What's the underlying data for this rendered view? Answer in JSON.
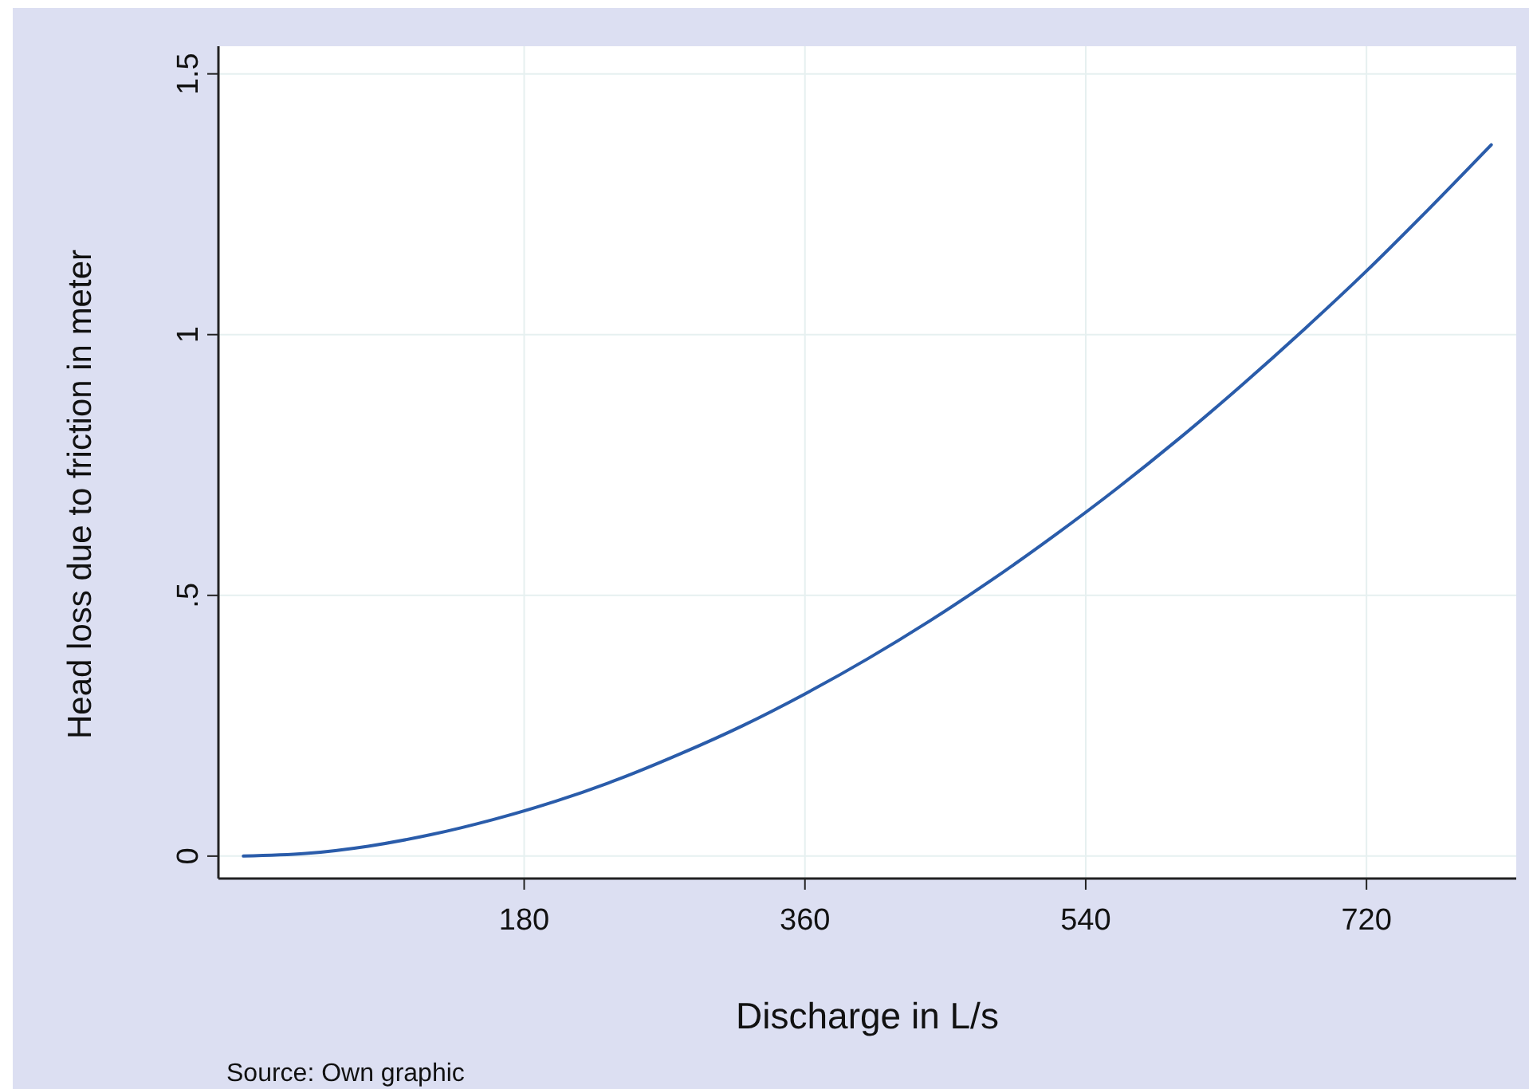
{
  "chart_data": {
    "type": "line",
    "xlabel": "Discharge in L/s",
    "ylabel": "Head loss due to friction in meter",
    "annotations": [
      "Source: Own graphic"
    ],
    "x": [
      0,
      40,
      80,
      120,
      160,
      200,
      240,
      280,
      320,
      360,
      400,
      440,
      480,
      520,
      560,
      600,
      640,
      680,
      720,
      760,
      800
    ],
    "series": [
      {
        "color": "#2a5caa",
        "values": [
          0,
          0.005,
          0.019,
          0.041,
          0.07,
          0.105,
          0.147,
          0.196,
          0.25,
          0.311,
          0.378,
          0.451,
          0.53,
          0.615,
          0.705,
          0.801,
          0.903,
          1.01,
          1.122,
          1.241,
          1.364
        ]
      }
    ],
    "xlim": [
      -16,
      816
    ],
    "xticks": [
      180,
      360,
      540,
      720
    ],
    "ylim": [
      -0.043,
      1.553
    ],
    "yticks": [
      0,
      {
        "value": 0.5,
        "label": ".5"
      },
      1,
      1.5
    ],
    "grid": true,
    "marker": "none",
    "line_style": "solid"
  }
}
